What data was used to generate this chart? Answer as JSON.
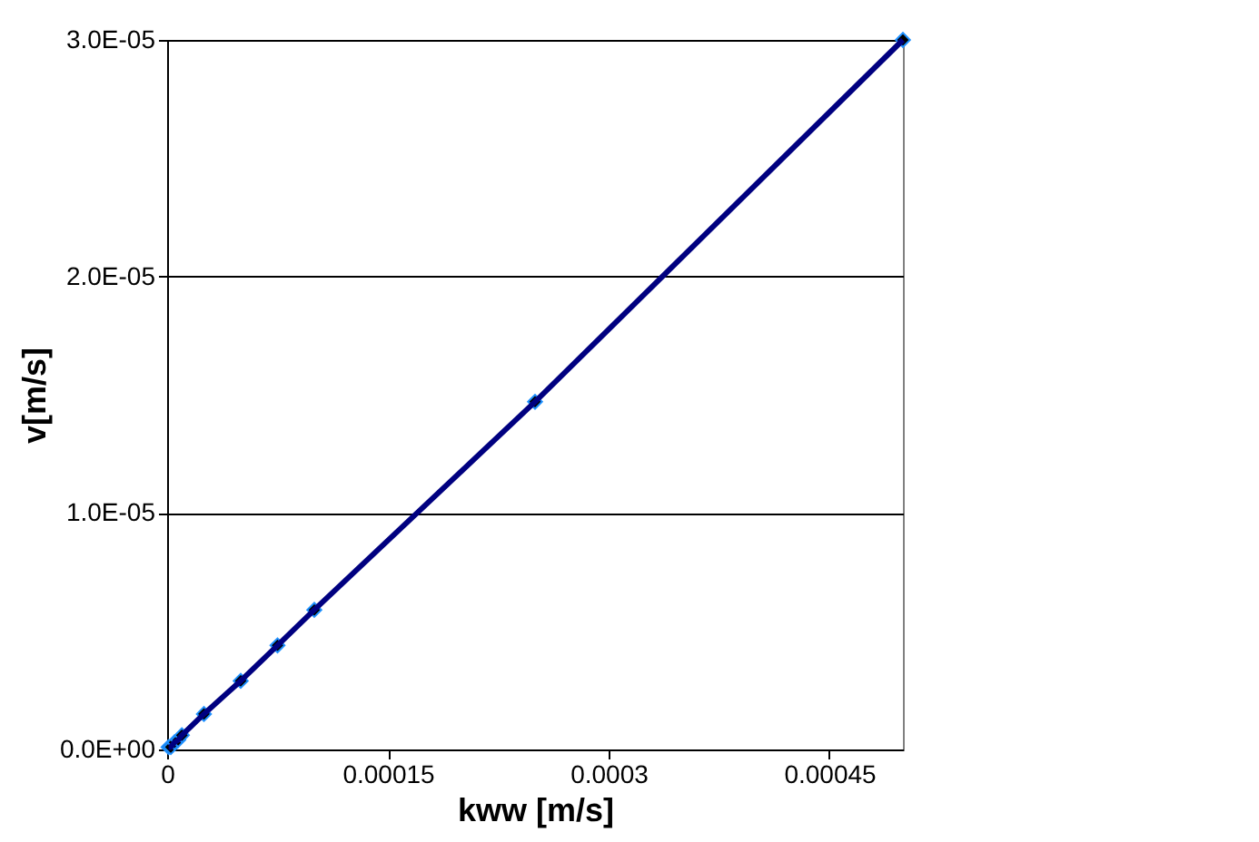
{
  "chart_data": {
    "type": "line",
    "xlabel": "kww [m/s]",
    "ylabel": "v[m/s]",
    "x": [
      1e-06,
      2.5e-06,
      5e-06,
      7.5e-06,
      1e-05,
      2.5e-05,
      5e-05,
      7.5e-05,
      0.0001,
      0.00025,
      0.0005
    ],
    "series": [
      {
        "color": "#000080",
        "values": [
          1e-07,
          1e-07,
          3e-07,
          4e-07,
          6e-07,
          1.5e-06,
          2.9e-06,
          4.4e-06,
          5.9e-06,
          1.47e-05,
          3e-05
        ]
      }
    ],
    "xlim": [
      0,
      0.0005
    ],
    "xticks": [
      {
        "value": 0,
        "label": "0"
      },
      {
        "value": 0.00015,
        "label": "0.00015"
      },
      {
        "value": 0.0003,
        "label": "0.0003"
      },
      {
        "value": 0.00045,
        "label": "0.00045"
      }
    ],
    "ylim": [
      0,
      3e-05
    ],
    "yticks": [
      {
        "value": 0,
        "label": "0.0E+00"
      },
      {
        "value": 1e-05,
        "label": "1.0E-05"
      },
      {
        "value": 2e-05,
        "label": "2.0E-05"
      },
      {
        "value": 3e-05,
        "label": "3.0E-05"
      }
    ],
    "grid": "y",
    "marker": "diamond",
    "line_style": "solid"
  }
}
